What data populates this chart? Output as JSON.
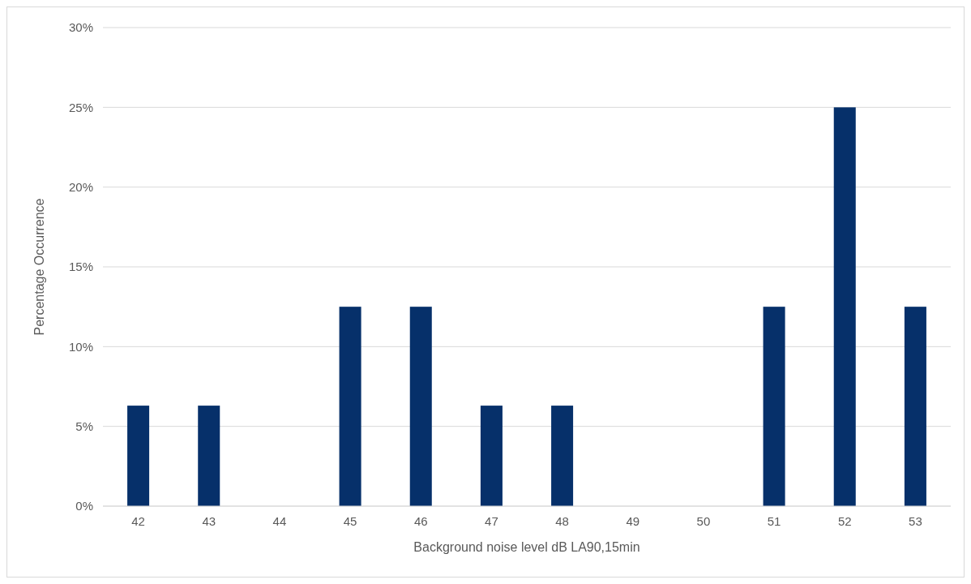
{
  "chart_data": {
    "type": "bar",
    "xlabel": "Background noise level dB LA90,15min",
    "ylabel": "Percentage Occurrence",
    "categories": [
      "42",
      "43",
      "44",
      "45",
      "46",
      "47",
      "48",
      "49",
      "50",
      "51",
      "52",
      "53"
    ],
    "values": [
      6.3,
      6.3,
      0,
      12.5,
      12.5,
      6.3,
      6.3,
      0,
      0,
      12.5,
      25,
      12.5
    ],
    "color": "#06306a",
    "ylim": [
      0,
      30
    ],
    "yticks": [
      {
        "value": 0,
        "label": "0%"
      },
      {
        "value": 5,
        "label": "5%"
      },
      {
        "value": 10,
        "label": "10%"
      },
      {
        "value": 15,
        "label": "15%"
      },
      {
        "value": 20,
        "label": "20%"
      },
      {
        "value": 25,
        "label": "25%"
      },
      {
        "value": 30,
        "label": "30%"
      }
    ],
    "grid": "y"
  }
}
